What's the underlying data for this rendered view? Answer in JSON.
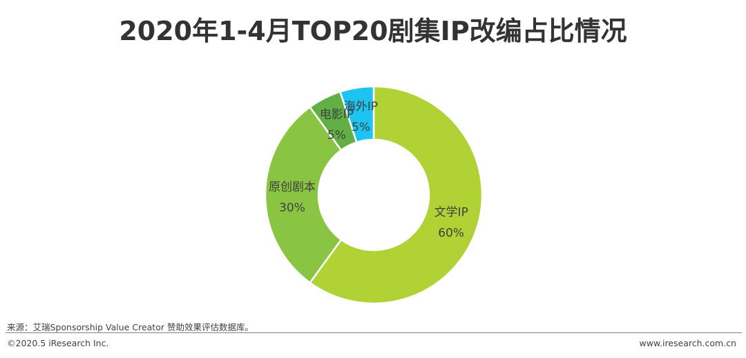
{
  "title": "2020年1-4月TOP20剧集IP改编占比情况",
  "footer": {
    "source": "来源：艾瑞Sponsorship Value Creator 赞助效果评估数据库。",
    "copyright": "©2020.5 iResearch Inc.",
    "website": "www.iresearch.com.cn"
  },
  "chart_data": {
    "type": "pie",
    "variant": "donut",
    "title": "2020年1-4月TOP20剧集IP改编占比情况",
    "start": "12 o'clock, clockwise",
    "slices": [
      {
        "label": "文学IP",
        "percent_label": "60%",
        "value": 60,
        "color": "#b1d235"
      },
      {
        "label": "原创剧本",
        "percent_label": "30%",
        "value": 30,
        "color": "#8ac443"
      },
      {
        "label": "电影IP",
        "percent_label": "5%",
        "value": 5,
        "color": "#62b045"
      },
      {
        "label": "海外IP",
        "percent_label": "5%",
        "value": 5,
        "color": "#1dc3f1"
      }
    ]
  }
}
